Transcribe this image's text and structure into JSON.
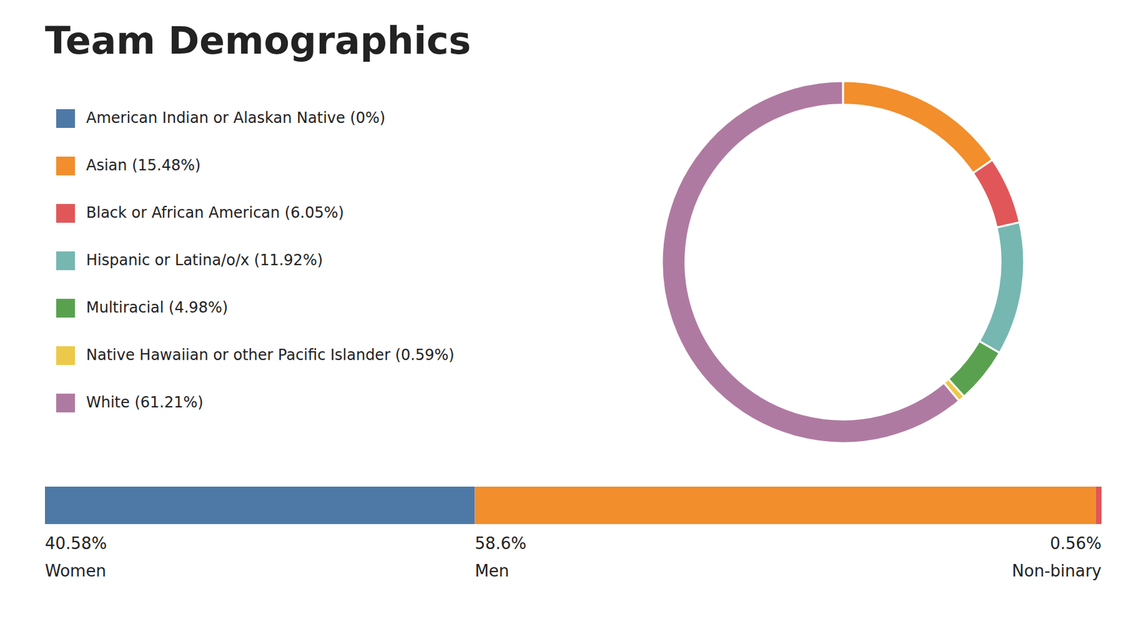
{
  "chart_data": [
    {
      "type": "donut",
      "title": "Team Demographics",
      "categories": [
        "American Indian or Alaskan Native (0%)",
        "Asian (15.48%)",
        "Black or African American (6.05%)",
        "Hispanic or Latina/o/x (11.92%)",
        "Multiracial (4.98%)",
        "Native Hawaiian or other Pacific Islander (0.59%)",
        "White (61.21%)"
      ],
      "values": [
        0.001,
        15.48,
        6.05,
        11.92,
        4.98,
        0.59,
        61.21
      ],
      "legend": "left"
    },
    {
      "type": "bar",
      "orientation": "horizontal",
      "stacked": true,
      "tick_labels": false,
      "xlim": [
        0,
        99.74
      ],
      "series": [
        {
          "name": "Women",
          "values": [
            40.58
          ],
          "value_labels": [
            "40.58%"
          ]
        },
        {
          "name": "Men",
          "values": [
            58.6
          ],
          "value_labels": [
            "58.6%"
          ]
        },
        {
          "name": "Non-binary",
          "values": [
            0.56
          ],
          "value_labels": [
            "0.56%"
          ]
        }
      ]
    }
  ]
}
